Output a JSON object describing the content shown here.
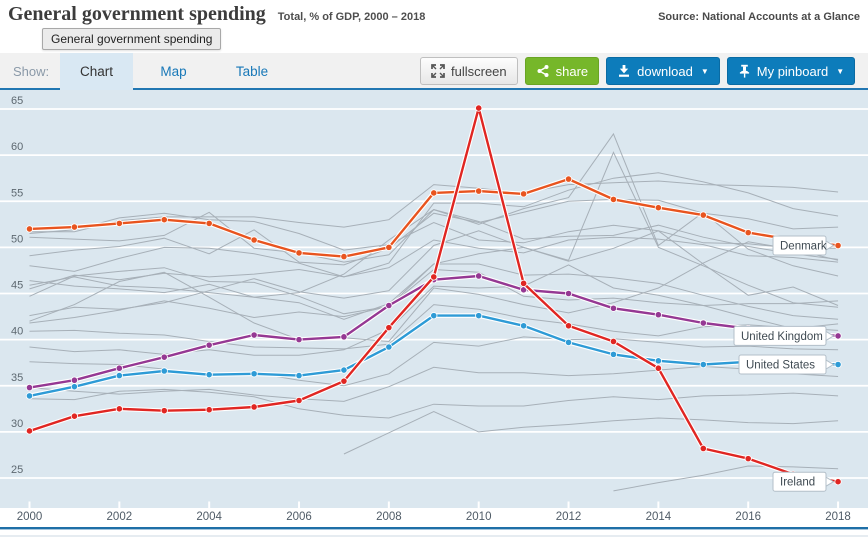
{
  "header": {
    "title": "General government spending",
    "subtitle": "Total, % of GDP, 2000 – 2018",
    "source": "Source: National Accounts at a Glance"
  },
  "tooltip": {
    "text": "General government spending"
  },
  "toolbar": {
    "show_label": "Show:",
    "tabs": [
      {
        "label": "Chart",
        "active": true
      },
      {
        "label": "Map",
        "active": false
      },
      {
        "label": "Table",
        "active": false
      }
    ],
    "buttons": {
      "fullscreen": "fullscreen",
      "share": "share",
      "download": "download",
      "pinboard": "My pinboard"
    },
    "caret": "▼"
  },
  "chart_data": {
    "type": "line",
    "title": "General government spending",
    "unit_note": "Total, % of GDP",
    "years": [
      2000,
      2001,
      2002,
      2003,
      2004,
      2005,
      2006,
      2007,
      2008,
      2009,
      2010,
      2011,
      2012,
      2013,
      2014,
      2015,
      2016,
      2017,
      2018
    ],
    "yticks": [
      25,
      30,
      35,
      40,
      45,
      50,
      55,
      60,
      65
    ],
    "ylim": [
      23,
      66
    ],
    "grid": "horizontal-white",
    "legend_position": "inline-right-callouts",
    "colors": {
      "plot_bg": "#dbe7ef",
      "gridline": "#ffffff",
      "background_line": "#a7b0b8",
      "axis_label": "#5d6870",
      "denmark": "#e8541f",
      "united_kingdom": "#953893",
      "united_states": "#2e9bd6",
      "ireland": "#e02622"
    },
    "series": [
      {
        "label": "United Kingdom",
        "color": "#953893",
        "values": [
          34.8,
          35.6,
          36.9,
          38.1,
          39.4,
          40.5,
          40.0,
          40.3,
          43.7,
          46.5,
          46.9,
          45.4,
          45.0,
          43.4,
          42.7,
          41.8,
          41.2,
          40.8,
          40.4
        ]
      },
      {
        "label": "United States",
        "color": "#2e9bd6",
        "values": [
          33.9,
          34.9,
          36.1,
          36.6,
          36.2,
          36.3,
          36.1,
          36.7,
          39.2,
          42.6,
          42.6,
          41.5,
          39.7,
          38.4,
          37.7,
          37.3,
          37.6,
          37.5,
          37.3
        ]
      },
      {
        "label": "Denmark",
        "color": "#e8541f",
        "values": [
          52.0,
          52.2,
          52.6,
          53.0,
          52.6,
          50.8,
          49.4,
          49.0,
          50.0,
          55.9,
          56.1,
          55.8,
          57.4,
          55.2,
          54.3,
          53.5,
          51.6,
          50.8,
          50.2
        ]
      },
      {
        "label": "Ireland",
        "color": "#e02622",
        "values": [
          30.1,
          31.7,
          32.5,
          32.3,
          32.4,
          32.7,
          33.4,
          35.5,
          41.3,
          46.8,
          65.1,
          46.1,
          41.5,
          39.8,
          36.9,
          28.2,
          27.1,
          25.4,
          24.6
        ]
      }
    ],
    "background_series": [
      {
        "values": [
          51.7,
          51.7,
          52.9,
          53.3,
          53.3,
          53.3,
          52.7,
          52.2,
          53.0,
          56.8,
          56.4,
          55.9,
          56.8,
          57.0,
          57.2,
          56.8,
          56.7,
          56.5,
          56.0
        ]
      },
      {
        "values": [
          48.0,
          47.4,
          48.8,
          50.0,
          49.9,
          49.3,
          48.3,
          46.8,
          48.3,
          54.8,
          54.8,
          54.4,
          56.2,
          57.5,
          58.1,
          57.1,
          55.9,
          54.2,
          53.4
        ]
      },
      {
        "values": [
          46.4,
          45.8,
          45.5,
          45.1,
          46.0,
          44.6,
          45.1,
          47.1,
          50.8,
          54.1,
          52.5,
          54.2,
          55.4,
          62.3,
          50.2,
          53.8,
          49.8,
          48.0,
          46.9
        ]
      },
      {
        "values": [
          45.9,
          46.8,
          45.8,
          45.6,
          45.1,
          44.6,
          44.0,
          42.2,
          43.9,
          48.2,
          49.3,
          50.0,
          48.6,
          60.3,
          50.0,
          48.0,
          45.9,
          44.0,
          43.5
        ]
      },
      {
        "values": [
          51.5,
          51.9,
          53.2,
          53.7,
          53.0,
          52.8,
          51.5,
          49.7,
          50.3,
          52.7,
          50.8,
          50.5,
          51.7,
          52.4,
          51.8,
          50.5,
          50.4,
          49.9,
          49.9
        ]
      },
      {
        "values": [
          51.1,
          50.9,
          50.7,
          51.3,
          53.8,
          49.9,
          49.4,
          48.4,
          49.2,
          54.1,
          52.8,
          50.9,
          51.2,
          51.3,
          52.4,
          51.1,
          50.1,
          49.3,
          48.7
        ]
      },
      {
        "values": [
          49.1,
          49.7,
          50.1,
          51.0,
          49.3,
          51.9,
          48.4,
          48.1,
          49.9,
          53.7,
          52.7,
          53.8,
          55.0,
          55.2,
          55.1,
          53.7,
          53.1,
          52.0,
          52.2
        ]
      },
      {
        "values": [
          45.5,
          47.0,
          46.5,
          47.2,
          46.8,
          47.1,
          47.6,
          46.8,
          47.8,
          50.8,
          49.9,
          49.4,
          50.8,
          51.1,
          50.9,
          50.3,
          49.1,
          48.9,
          48.4
        ]
      },
      {
        "values": [
          44.7,
          46.9,
          47.4,
          47.8,
          46.3,
          46.2,
          44.7,
          42.8,
          43.6,
          47.6,
          47.3,
          44.7,
          44.3,
          44.5,
          44.0,
          43.7,
          43.9,
          43.9,
          44.2
        ]
      },
      {
        "values": [
          41.8,
          42.4,
          43.2,
          44.2,
          43.4,
          42.4,
          43.0,
          42.5,
          43.6,
          48.2,
          48.2,
          47.0,
          47.1,
          46.7,
          46.1,
          44.8,
          43.6,
          42.6,
          42.2
        ]
      },
      {
        "values": [
          42.0,
          43.8,
          46.3,
          47.3,
          44.6,
          41.8,
          40.0,
          40.2,
          39.8,
          45.6,
          44.9,
          43.8,
          42.9,
          44.0,
          45.6,
          48.3,
          50.6,
          49.8,
          48.6
        ]
      },
      {
        "values": [
          42.6,
          43.5,
          43.3,
          44.0,
          45.3,
          46.6,
          45.2,
          44.5,
          45.3,
          50.2,
          51.8,
          50.0,
          48.5,
          49.9,
          51.8,
          48.2,
          44.8,
          45.7,
          43.7
        ]
      },
      {
        "values": [
          39.2,
          38.7,
          38.9,
          38.4,
          38.9,
          38.3,
          38.3,
          38.9,
          41.1,
          45.8,
          45.6,
          45.8,
          48.1,
          45.6,
          44.8,
          43.7,
          42.4,
          41.2,
          41.7
        ]
      },
      {
        "values": [
          40.9,
          41.0,
          40.7,
          40.5,
          39.8,
          39.2,
          39.1,
          39.0,
          39.5,
          43.8,
          43.3,
          42.3,
          41.7,
          40.9,
          40.4,
          41.4,
          41.6,
          41.3,
          41.0
        ]
      },
      {
        "values": [
          37.6,
          37.4,
          37.3,
          36.8,
          36.0,
          36.4,
          35.6,
          35.0,
          36.3,
          39.7,
          39.3,
          40.3,
          40.0,
          40.1,
          39.7,
          39.2,
          39.3,
          39.0,
          38.9
        ]
      },
      {
        "values": [
          33.6,
          33.5,
          34.4,
          34.6,
          34.3,
          33.8,
          32.5,
          31.8,
          31.5,
          33.0,
          32.8,
          32.8,
          33.4,
          33.8,
          33.5,
          33.9,
          34.0,
          34.2,
          33.9
        ]
      },
      {
        "values": [
          34.8,
          34.4,
          34.1,
          34.4,
          34.6,
          34.0,
          33.6,
          33.3,
          34.9,
          37.0,
          36.4,
          36.4,
          36.1,
          36.3,
          36.7,
          37.1,
          36.8,
          36.3,
          36.0
        ]
      },
      {
        "values": [
          null,
          null,
          null,
          null,
          null,
          null,
          null,
          27.6,
          29.9,
          32.2,
          30.0,
          30.5,
          30.8,
          31.2,
          31.5,
          31.3,
          31.0,
          30.9,
          31.2
        ]
      },
      {
        "values": [
          null,
          null,
          null,
          null,
          null,
          null,
          null,
          null,
          null,
          null,
          null,
          null,
          null,
          23.6,
          24.5,
          25.3,
          26.3,
          26.2,
          26.0
        ]
      }
    ]
  }
}
